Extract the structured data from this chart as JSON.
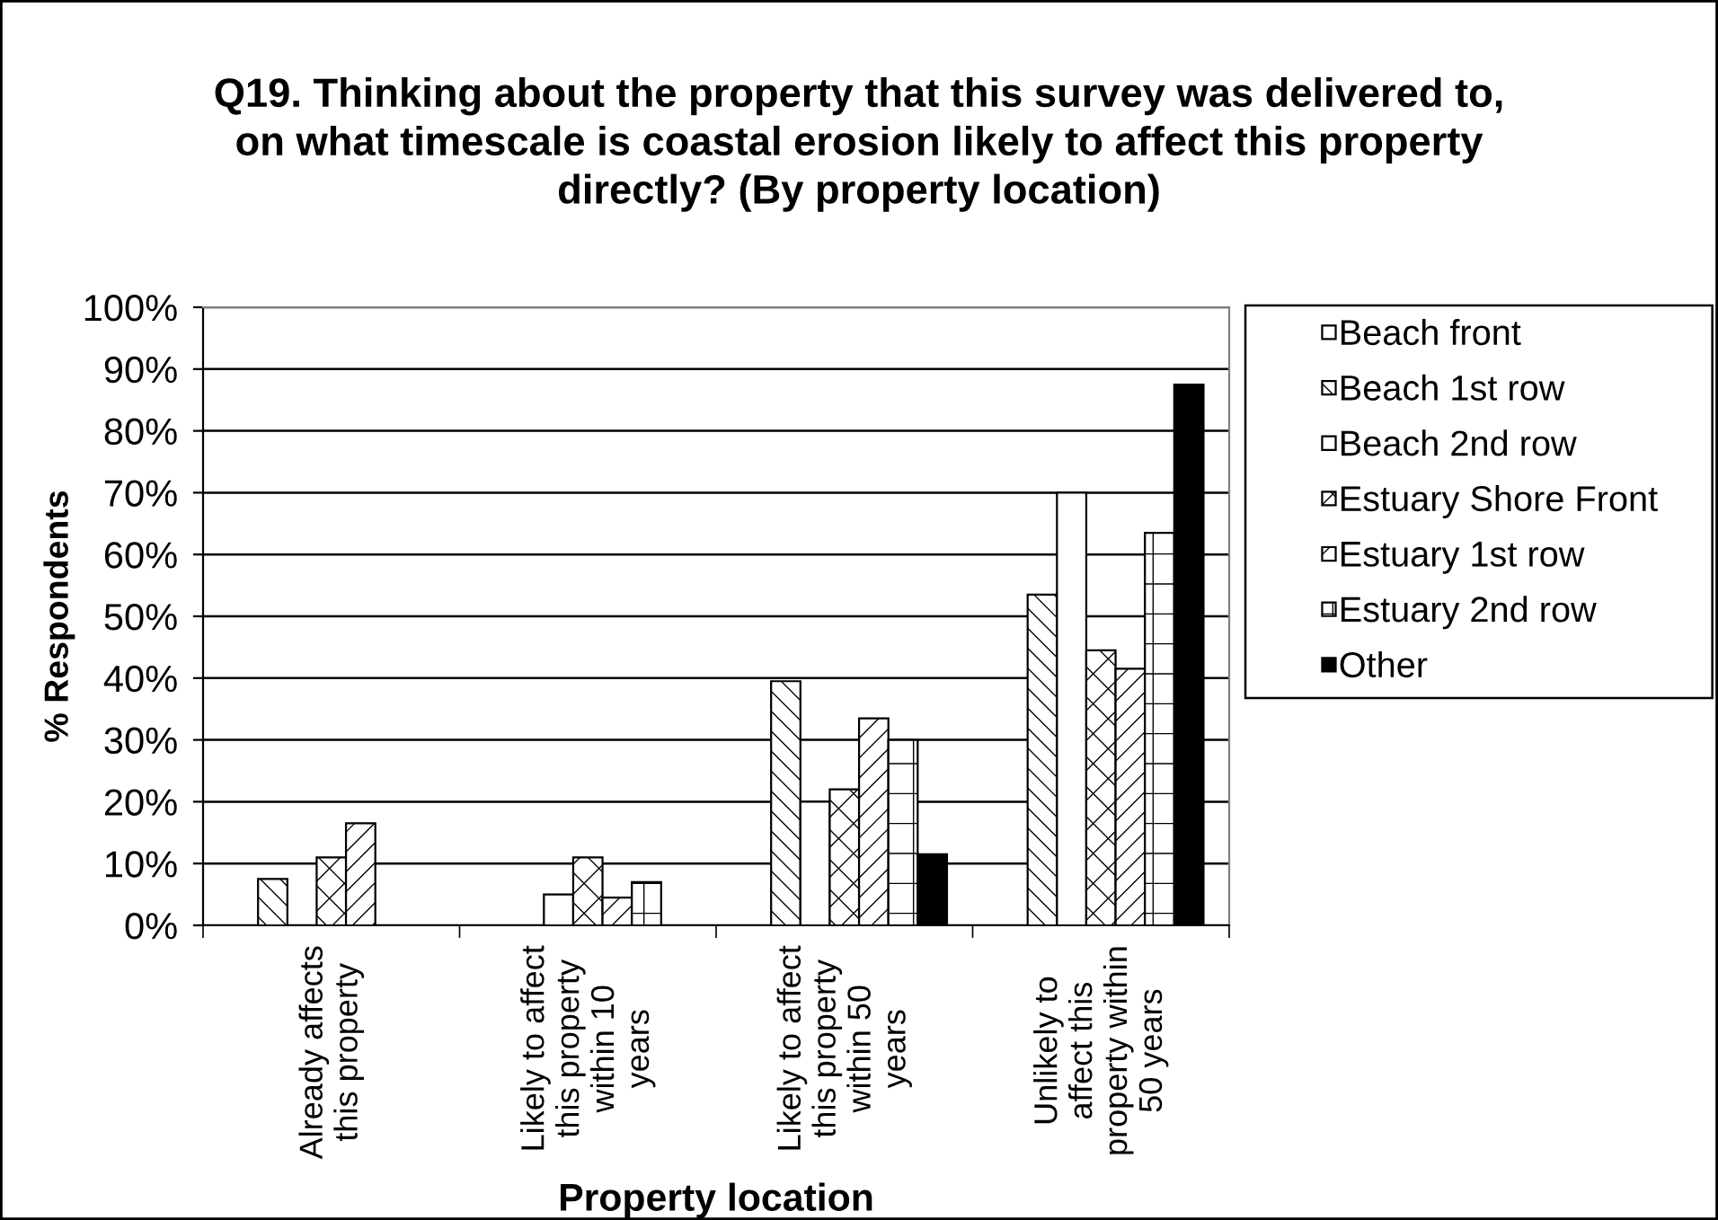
{
  "chart_data": {
    "type": "bar",
    "title": "Q19. Thinking about the property that this survey was delivered to,\non what timescale is coastal erosion likely to affect this property\ndirectly? (By property location)",
    "xlabel": "Property location",
    "ylabel": "% Respondents",
    "categories": [
      "Already affects\nthis property",
      "Likely to affect\nthis property\nwithin 10\nyears",
      "Likely to affect\nthis property\nwithin 50\nyears",
      "Unlikely to\naffect this\nproperty within\n50 years"
    ],
    "series": [
      {
        "name": "Beach front",
        "color": "#ffffff",
        "values": [
          null,
          null,
          null,
          null
        ]
      },
      {
        "name": "Beach 1st row",
        "color": "#000000",
        "values": [
          7.5,
          null,
          39.5,
          53.5
        ]
      },
      {
        "name": "Beach 2nd row",
        "color": "#ffffff",
        "values": [
          null,
          5,
          20,
          70
        ]
      },
      {
        "name": "Estuary Shore Front",
        "color": "#000000",
        "values": [
          11,
          11,
          22,
          44.5
        ]
      },
      {
        "name": "Estuary 1st row",
        "color": "#000000",
        "values": [
          16.5,
          4.5,
          33.5,
          41.5
        ]
      },
      {
        "name": "Estuary 2nd row",
        "color": "#000000",
        "values": [
          null,
          7,
          30,
          63.5
        ]
      },
      {
        "name": "Other",
        "color": "#000000",
        "values": [
          null,
          null,
          11.5,
          87.5
        ]
      }
    ],
    "ylim": [
      0,
      100
    ],
    "yticks": [
      {
        "value": 0,
        "label": "0%"
      },
      {
        "value": 10,
        "label": "10%"
      },
      {
        "value": 20,
        "label": "20%"
      },
      {
        "value": 30,
        "label": "30%"
      },
      {
        "value": 40,
        "label": "40%"
      },
      {
        "value": 50,
        "label": "50%"
      },
      {
        "value": 60,
        "label": "60%"
      },
      {
        "value": 70,
        "label": "70%"
      },
      {
        "value": 80,
        "label": "80%"
      },
      {
        "value": 90,
        "label": "90%"
      },
      {
        "value": 100,
        "label": "100%"
      }
    ],
    "grid": "y",
    "legend": "top right"
  }
}
